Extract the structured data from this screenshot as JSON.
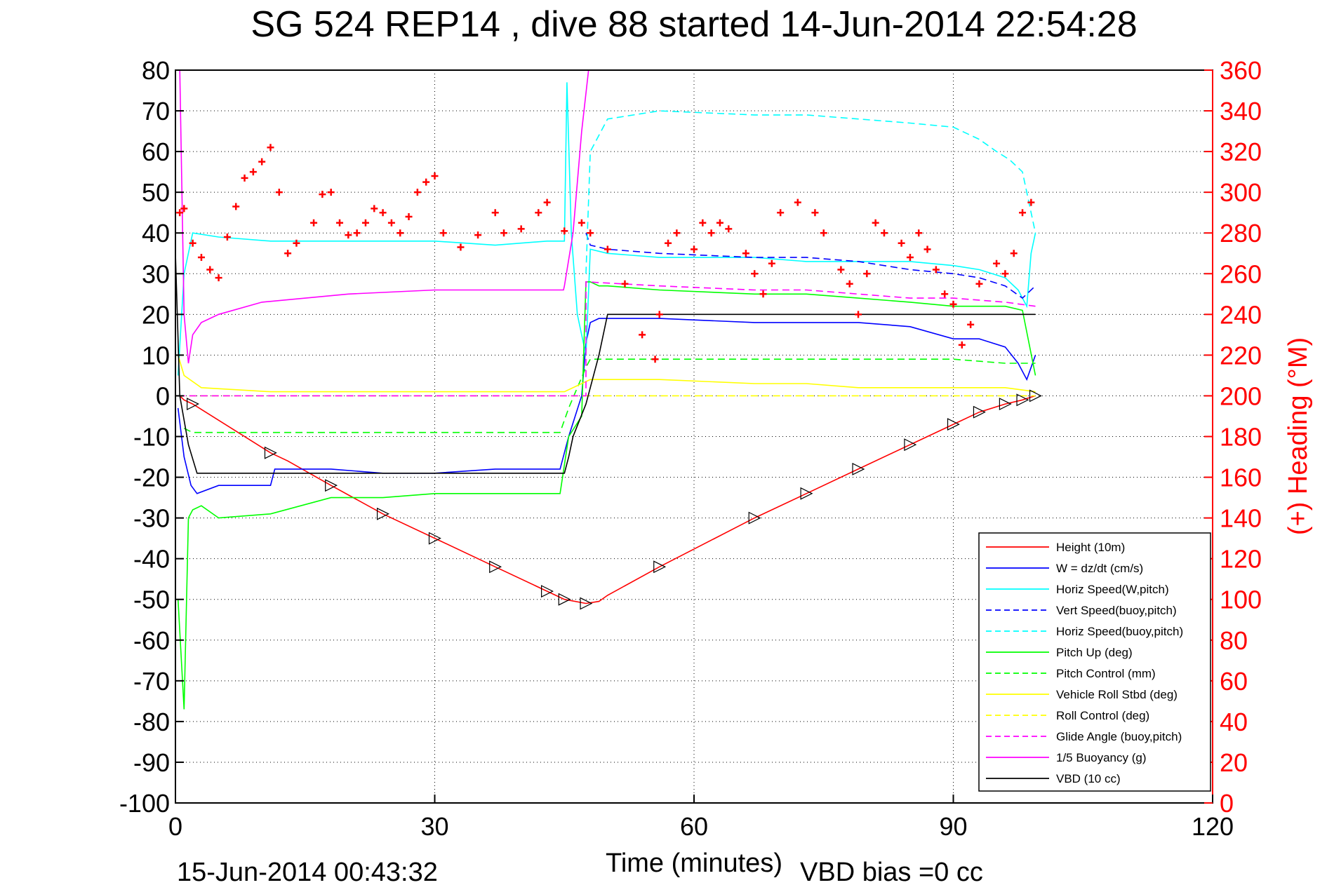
{
  "chart_data": {
    "type": "line",
    "title": "SG 524   REP14  , dive 88 started 14-Jun-2014 22:54:28",
    "xlabel": "Time (minutes)",
    "ylabel_right": "(+) Heading (°M)",
    "xlim": [
      0,
      120
    ],
    "ylim_left": [
      -100,
      80
    ],
    "ylim_right": [
      0,
      360
    ],
    "xticks": [
      "0",
      "30",
      "60",
      "90",
      "120"
    ],
    "yticks_left": [
      "80",
      "70",
      "60",
      "50",
      "40",
      "30",
      "20",
      "10",
      "0",
      "-10",
      "-20",
      "-30",
      "-40",
      "-50",
      "-60",
      "-70",
      "-80",
      "-90",
      "-100"
    ],
    "yticks_right": [
      "360",
      "340",
      "320",
      "300",
      "280",
      "260",
      "240",
      "220",
      "200",
      "180",
      "160",
      "140",
      "120",
      "100",
      "80",
      "60",
      "40",
      "20",
      "0"
    ],
    "grid": "dotted",
    "legend_position": "bottom-right",
    "footer_left": "15-Jun-2014 00:43:32",
    "footer_right": "VBD bias =0 cc",
    "series": [
      {
        "name": "Height (10m)",
        "color": "#ff0000",
        "style": "solid",
        "x": [
          0.5,
          1,
          2,
          11,
          13,
          18,
          24,
          30,
          37,
          43,
          45,
          47.5,
          49,
          50,
          56,
          67,
          73,
          79,
          85,
          90,
          93,
          96,
          98,
          99.5
        ],
        "y": [
          0,
          -1,
          -2,
          -14,
          -16,
          -22,
          -29,
          -35,
          -42,
          -48,
          -50,
          -51,
          -50.5,
          -49,
          -42,
          -30,
          -24,
          -18,
          -12,
          -7,
          -4,
          -2,
          -1,
          0
        ]
      },
      {
        "name": "W = dz/dt (cm/s)",
        "color": "#0000ff",
        "style": "solid",
        "x": [
          0.3,
          1,
          1.8,
          2.5,
          5,
          11,
          11.5,
          18,
          24,
          30,
          37,
          43,
          44.5,
          45.5,
          47,
          47.5,
          48,
          49,
          50,
          56,
          67,
          73,
          79,
          85,
          90,
          93,
          96,
          97.5,
          98.5,
          99.5
        ],
        "y": [
          -3,
          -15,
          -22,
          -24,
          -22,
          -22,
          -18,
          -18,
          -19,
          -19,
          -18,
          -18,
          -18,
          -10,
          0,
          13,
          18,
          19,
          19,
          19,
          18,
          18,
          18,
          17,
          14,
          14,
          12,
          8,
          4,
          10
        ]
      },
      {
        "name": "Horiz Speed(W,pitch)",
        "color": "#00ffff",
        "style": "solid",
        "x": [
          0.3,
          1,
          2,
          5,
          11,
          18,
          24,
          30,
          37,
          43,
          45,
          45.3,
          45.8,
          46.5,
          47.5,
          48,
          50,
          56,
          67,
          73,
          79,
          85,
          90,
          93,
          96,
          97.5,
          98.5,
          99,
          99.5
        ],
        "y": [
          5,
          30,
          40,
          39,
          38,
          38,
          38,
          38,
          37,
          38,
          38,
          77,
          40,
          20,
          10,
          36,
          35,
          34,
          34,
          33,
          33,
          33,
          32,
          31,
          29,
          26,
          22,
          35,
          40
        ]
      },
      {
        "name": "Vert Speed(buoy,pitch)",
        "color": "#0000ff",
        "style": "dashed",
        "x": [
          47.5,
          48,
          50,
          56,
          67,
          73,
          79,
          85,
          90,
          93,
          96,
          98,
          99.5
        ],
        "y": [
          40,
          37,
          36,
          35,
          34,
          34,
          33,
          31,
          30,
          29,
          27,
          24,
          27
        ]
      },
      {
        "name": "Horiz Speed(buoy,pitch)",
        "color": "#00ffff",
        "style": "dashed",
        "x": [
          47.5,
          48,
          50,
          56,
          67,
          73,
          79,
          85,
          90,
          93,
          95,
          96.5,
          98,
          99.5
        ],
        "y": [
          30,
          60,
          68,
          70,
          69,
          69,
          68,
          67,
          66,
          63,
          60,
          58,
          55,
          40
        ]
      },
      {
        "name": "Pitch Up (deg)",
        "color": "#00ff00",
        "style": "solid",
        "x": [
          0.3,
          1,
          1.5,
          2,
          3,
          5,
          11,
          18,
          24,
          30,
          37,
          43,
          44.5,
          45.5,
          47,
          47.5,
          48,
          49,
          50,
          56,
          67,
          73,
          79,
          85,
          90,
          93,
          96,
          98,
          99.5
        ],
        "y": [
          -50,
          -77,
          -30,
          -28,
          -27,
          -30,
          -29,
          -25,
          -25,
          -24,
          -24,
          -24,
          -24,
          -10,
          -5,
          28,
          28,
          27,
          27,
          26,
          25,
          25,
          24,
          23,
          22,
          22,
          22,
          21,
          5
        ]
      },
      {
        "name": "Pitch Control (mm)",
        "color": "#00ff00",
        "style": "dashed",
        "x": [
          1,
          2,
          44.5,
          45.5,
          47.5,
          48,
          90,
          96,
          99.5
        ],
        "y": [
          -8,
          -9,
          -9,
          -3,
          7,
          9,
          9,
          8,
          8
        ]
      },
      {
        "name": "Vehicle Roll Stbd (deg)",
        "color": "#ffff00",
        "style": "solid",
        "x": [
          0.3,
          1,
          3,
          11,
          18,
          24,
          30,
          37,
          43,
          45,
          48,
          50,
          56,
          67,
          73,
          79,
          85,
          90,
          93,
          96,
          99.5
        ],
        "y": [
          10,
          5,
          2,
          1,
          1,
          1,
          1,
          1,
          1,
          1,
          4,
          4,
          4,
          3,
          3,
          2,
          2,
          2,
          2,
          2,
          1
        ]
      },
      {
        "name": "Roll Control (deg)",
        "color": "#ffff00",
        "style": "dashed",
        "x": [
          0.3,
          1,
          99.5
        ],
        "y": [
          0,
          0,
          0
        ]
      },
      {
        "name": "Glide Angle (buoy,pitch)",
        "color": "#ff00ff",
        "style": "dashed",
        "x": [
          0.3,
          47.5,
          47.5,
          56,
          67,
          73,
          79,
          85,
          90,
          96,
          99.5
        ],
        "y": [
          0,
          0,
          28,
          27,
          26,
          26,
          25,
          24,
          24,
          23,
          22
        ]
      },
      {
        "name": "1/5 Buoyancy (g)",
        "color": "#ff00ff",
        "style": "solid",
        "x": [
          0.5,
          1,
          1.5,
          2,
          3,
          5,
          10,
          20,
          30,
          40,
          44.9,
          45,
          46,
          47,
          47.8
        ],
        "y": [
          80,
          20,
          8,
          15,
          18,
          20,
          23,
          25,
          26,
          26,
          26,
          27,
          40,
          65,
          80
        ]
      },
      {
        "name": "VBD (10 cc)",
        "color": "#000000",
        "style": "solid",
        "x": [
          0,
          0.5,
          1.5,
          2.5,
          44.9,
          45,
          45.5,
          46,
          47.5,
          49,
          50,
          99.5
        ],
        "y": [
          35,
          0,
          -12,
          -19,
          -19,
          -19,
          -15,
          -10,
          -2,
          10,
          20,
          20
        ]
      }
    ],
    "heading_series": {
      "name": "Heading (°M)",
      "axis": "right",
      "color": "#ff0000",
      "marker": "+",
      "x": [
        0.5,
        1,
        2,
        3,
        4,
        5,
        6,
        7,
        8,
        9,
        10,
        11,
        12,
        13,
        14,
        16,
        17,
        18,
        19,
        20,
        21,
        22,
        23,
        24,
        25,
        26,
        27,
        28,
        29,
        30,
        31,
        33,
        35,
        37,
        38,
        40,
        42,
        43,
        45,
        47,
        48,
        50,
        52,
        54,
        55.5,
        56,
        57,
        58,
        60,
        61,
        62,
        63,
        64,
        66,
        67,
        68,
        69,
        70,
        72,
        74,
        75,
        77,
        78,
        79,
        80,
        81,
        82,
        84,
        85,
        86,
        87,
        88,
        89,
        90,
        91,
        92,
        93,
        95,
        96,
        97,
        98,
        99
      ],
      "y": [
        290,
        292,
        275,
        268,
        262,
        258,
        278,
        293,
        307,
        310,
        315,
        322,
        300,
        270,
        275,
        285,
        299,
        300,
        285,
        279,
        280,
        285,
        292,
        290,
        285,
        280,
        288,
        300,
        305,
        308,
        280,
        273,
        279,
        290,
        280,
        282,
        290,
        295,
        281,
        285,
        280,
        272,
        255,
        230,
        218,
        240,
        275,
        280,
        272,
        285,
        280,
        285,
        282,
        270,
        260,
        250,
        265,
        290,
        295,
        290,
        280,
        262,
        255,
        240,
        260,
        285,
        280,
        275,
        268,
        280,
        272,
        262,
        250,
        245,
        225,
        235,
        255,
        265,
        260,
        270,
        290,
        295
      ]
    }
  }
}
